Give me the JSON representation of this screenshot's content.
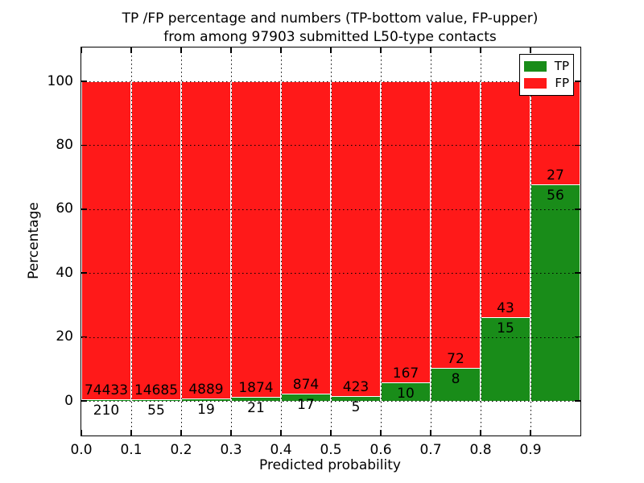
{
  "figure": {
    "title_line1": "TP /FP percentage and numbers (TP-bottom value, FP-upper)",
    "title_line2": "from among 97903 submitted L50-type contacts",
    "xlabel": "Predicted probability",
    "ylabel": "Percentage"
  },
  "legend": {
    "position": "upper-right",
    "items": [
      {
        "label": "TP",
        "color": "#198c19"
      },
      {
        "label": "FP",
        "color": "#ff1919"
      }
    ]
  },
  "chart_data": {
    "type": "bar",
    "stacked": true,
    "normalized_to_percent_per_bin": true,
    "title": "TP /FP percentage and numbers (TP-bottom value, FP-upper) from among 97903 submitted L50-type contacts",
    "xlabel": "Predicted probability",
    "ylabel": "Percentage",
    "total_contacts": 97903,
    "bin_width": 0.1,
    "bin_starts": [
      0.0,
      0.1,
      0.2,
      0.3,
      0.4,
      0.5,
      0.6,
      0.7,
      0.8,
      0.9
    ],
    "x_tick_labels": [
      "0.0",
      "0.1",
      "0.2",
      "0.3",
      "0.4",
      "0.5",
      "0.6",
      "0.7",
      "0.8",
      "0.9"
    ],
    "y_ticks": [
      0,
      20,
      40,
      60,
      80,
      100
    ],
    "xlim": [
      0.0,
      1.0
    ],
    "ylim": [
      -10.8,
      110.6
    ],
    "grid": "dotted",
    "legend_position": "upper right",
    "series": [
      {
        "name": "TP",
        "color": "#198c19",
        "counts": [
          210,
          55,
          19,
          21,
          17,
          5,
          10,
          8,
          15,
          56
        ]
      },
      {
        "name": "FP",
        "color": "#ff1919",
        "counts": [
          74433,
          14685,
          4889,
          1874,
          874,
          423,
          167,
          72,
          43,
          27
        ]
      }
    ],
    "tp_percent_of_bin": [
      0.28,
      0.37,
      0.39,
      1.11,
      1.91,
      1.17,
      5.65,
      10.0,
      25.86,
      67.47
    ]
  }
}
